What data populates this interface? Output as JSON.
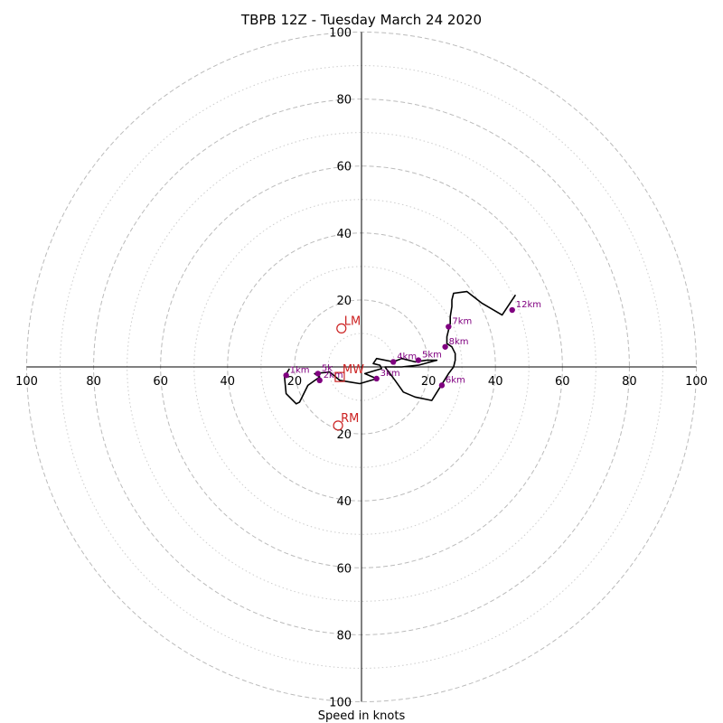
{
  "chart_data": {
    "type": "hodograph",
    "title": "TBPB 12Z - Tuesday March 24 2020",
    "xlabel": "Speed in knots",
    "ylabel": "",
    "xlim": [
      -100,
      100
    ],
    "ylim": [
      -100,
      100
    ],
    "ring_speeds_dashed": [
      20,
      40,
      60,
      80,
      100
    ],
    "ring_speeds_dotted": [
      10,
      30,
      50,
      70,
      90
    ],
    "x_tick_labels": [
      "100",
      "80",
      "60",
      "40",
      "20",
      "20",
      "40",
      "60",
      "80",
      "100"
    ],
    "x_tick_values": [
      -100,
      -80,
      -60,
      -40,
      -20,
      20,
      40,
      60,
      80,
      100
    ],
    "y_tick_labels": [
      "100",
      "80",
      "60",
      "40",
      "20",
      "20",
      "40",
      "60",
      "80",
      "100"
    ],
    "y_tick_values": [
      100,
      80,
      60,
      40,
      20,
      -20,
      -40,
      -60,
      -80,
      -100
    ],
    "hodograph_line": {
      "color": "#000000",
      "points": [
        [
          -21.5,
          -0.5
        ],
        [
          -23,
          -3
        ],
        [
          -22.5,
          -8
        ],
        [
          -19.5,
          -11
        ],
        [
          -18.5,
          -10.5
        ],
        [
          -16,
          -5.5
        ],
        [
          -12.5,
          -3
        ],
        [
          -14,
          -2
        ],
        [
          -9.5,
          -1.5
        ],
        [
          -6.5,
          -4
        ],
        [
          -3.5,
          -4.5
        ],
        [
          -0.5,
          -5
        ],
        [
          4.5,
          -3.5
        ],
        [
          1,
          -2
        ],
        [
          6,
          -0.5
        ],
        [
          5.5,
          0.5
        ],
        [
          3.5,
          1
        ],
        [
          4.5,
          2.5
        ],
        [
          9.5,
          1.5
        ],
        [
          12,
          2.5
        ],
        [
          16,
          1.5
        ],
        [
          19.5,
          2
        ],
        [
          22.5,
          2
        ],
        [
          17,
          0.5
        ],
        [
          12,
          0
        ],
        [
          7,
          0
        ],
        [
          10,
          -4
        ],
        [
          12.5,
          -7.5
        ],
        [
          16,
          -9
        ],
        [
          21,
          -10
        ],
        [
          23.5,
          -6
        ],
        [
          26,
          -2
        ],
        [
          27.5,
          0
        ],
        [
          28,
          2
        ],
        [
          28,
          4
        ],
        [
          27,
          6
        ],
        [
          25.5,
          7
        ],
        [
          25.5,
          9
        ],
        [
          26,
          11
        ],
        [
          26.5,
          13
        ],
        [
          26.5,
          15
        ],
        [
          27,
          18
        ],
        [
          27,
          20
        ],
        [
          27.5,
          22
        ],
        [
          31.5,
          22.5
        ],
        [
          36,
          19
        ],
        [
          42,
          15.5
        ],
        [
          46,
          21.5
        ]
      ]
    },
    "height_markers": {
      "color": "#800080",
      "points": [
        {
          "label": "1km",
          "u": -22.5,
          "v": -2.5
        },
        {
          "label": "2km",
          "u": -12.5,
          "v": -4
        },
        {
          "label": "3km",
          "u": 4.5,
          "v": -3.5
        },
        {
          "label": "4km",
          "u": 9.5,
          "v": 1.5
        },
        {
          "label": "5km",
          "u": 17,
          "v": 2
        },
        {
          "label": "6km",
          "u": 24,
          "v": -5.5
        },
        {
          "label": "7km",
          "u": 26,
          "v": 12
        },
        {
          "label": "8km",
          "u": 25,
          "v": 6
        },
        {
          "label": "12km",
          "u": 45,
          "v": 17
        },
        {
          "label": "5k",
          "u": -13,
          "v": -2
        }
      ]
    },
    "storm_motion": {
      "color": "#cc2222",
      "points": [
        {
          "label": "LM",
          "u": -6,
          "v": 11.5,
          "marker": "circle"
        },
        {
          "label": "MW",
          "u": -6.5,
          "v": -3,
          "marker": "square"
        },
        {
          "label": "RM",
          "u": -7,
          "v": -17.5,
          "marker": "circle"
        }
      ]
    },
    "grid": true,
    "legend": "none"
  }
}
